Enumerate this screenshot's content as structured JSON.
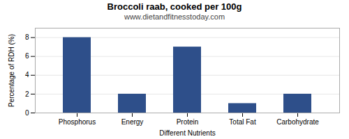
{
  "chart_data": {
    "type": "bar",
    "title": "Broccoli raab, cooked per 100g",
    "subtitle": "www.dietandfitnesstoday.com",
    "xlabel": "Different Nutrients",
    "ylabel": "Percentage of RDH (%)",
    "categories": [
      "Phosphorus",
      "Energy",
      "Protein",
      "Total Fat",
      "Carbohydrate"
    ],
    "values": [
      8.0,
      2.0,
      7.0,
      1.0,
      2.0
    ],
    "color": "#2e4f8a",
    "ylim": [
      0,
      9
    ],
    "yticks": [
      0,
      2,
      4,
      6,
      8
    ],
    "grid": true
  }
}
